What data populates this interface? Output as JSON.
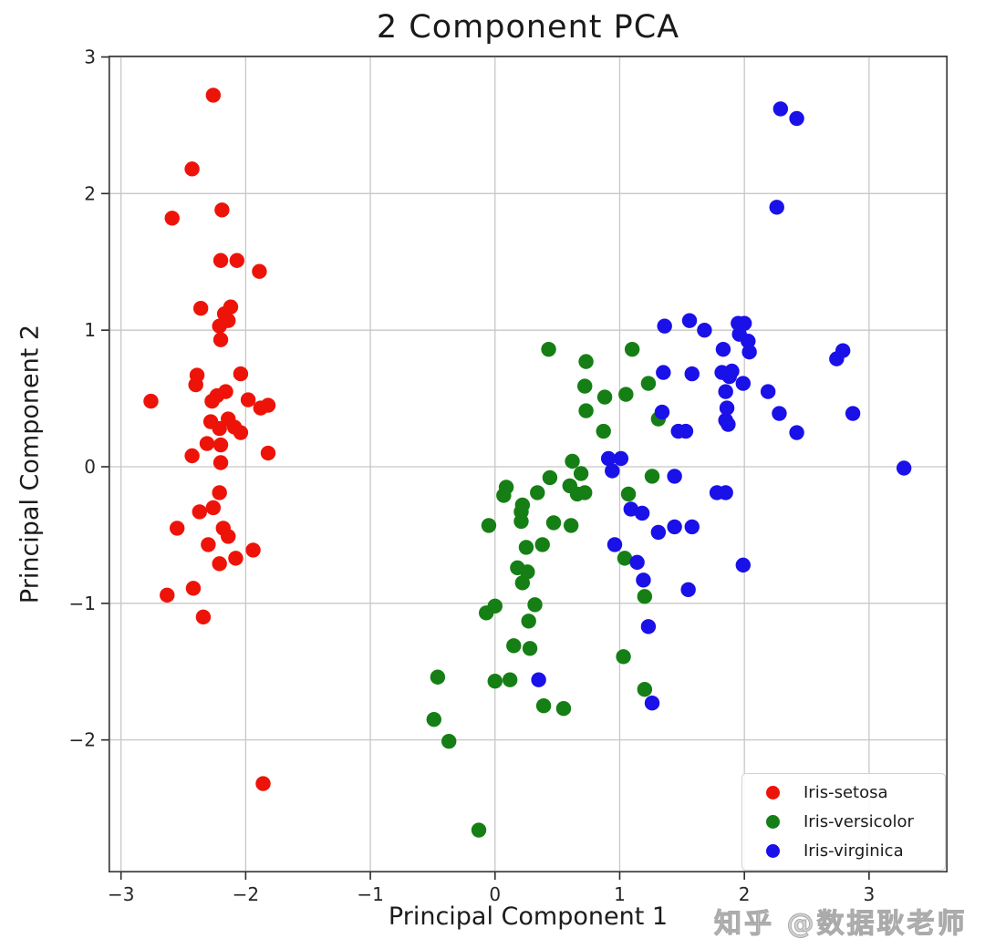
{
  "watermark": "知乎 @数据耿老师",
  "chart_data": {
    "type": "scatter",
    "title": "2 Component PCA",
    "xlabel": "Principal Component 1",
    "ylabel": "Principal Component 2",
    "xlim": [
      -3.1,
      3.63
    ],
    "ylim": [
      -2.97,
      3.01
    ],
    "xticks": [
      -3,
      -2,
      -1,
      0,
      1,
      2,
      3
    ],
    "yticks": [
      -2,
      -1,
      0,
      1,
      2,
      3
    ],
    "grid": true,
    "grid_color": "#c7c7c7",
    "spine_color": "#3b3b3b",
    "marker_radius": 8.2,
    "legend_position": "lower right",
    "series": [
      {
        "name": "Iris-setosa",
        "color": "#ee1309",
        "points": [
          [
            -2.26,
            2.72
          ],
          [
            -2.43,
            2.18
          ],
          [
            -2.19,
            1.88
          ],
          [
            -2.59,
            1.82
          ],
          [
            -2.2,
            1.51
          ],
          [
            -2.07,
            1.51
          ],
          [
            -1.89,
            1.43
          ],
          [
            -2.36,
            1.16
          ],
          [
            -2.12,
            1.17
          ],
          [
            -2.17,
            1.12
          ],
          [
            -2.14,
            1.07
          ],
          [
            -2.21,
            1.03
          ],
          [
            -2.2,
            0.93
          ],
          [
            -2.39,
            0.67
          ],
          [
            -2.04,
            0.68
          ],
          [
            -2.4,
            0.6
          ],
          [
            -2.16,
            0.55
          ],
          [
            -2.27,
            0.48
          ],
          [
            -2.76,
            0.48
          ],
          [
            -1.98,
            0.49
          ],
          [
            -1.88,
            0.43
          ],
          [
            -1.82,
            0.45
          ],
          [
            -2.23,
            0.52
          ],
          [
            -2.14,
            0.35
          ],
          [
            -2.21,
            0.28
          ],
          [
            -2.09,
            0.29
          ],
          [
            -2.04,
            0.25
          ],
          [
            -2.31,
            0.17
          ],
          [
            -2.2,
            0.16
          ],
          [
            -2.28,
            0.33
          ],
          [
            -2.43,
            0.08
          ],
          [
            -1.82,
            0.1
          ],
          [
            -2.2,
            0.03
          ],
          [
            -2.21,
            -0.19
          ],
          [
            -2.37,
            -0.33
          ],
          [
            -2.26,
            -0.3
          ],
          [
            -2.55,
            -0.45
          ],
          [
            -2.18,
            -0.45
          ],
          [
            -2.14,
            -0.51
          ],
          [
            -2.3,
            -0.57
          ],
          [
            -1.94,
            -0.61
          ],
          [
            -2.21,
            -0.71
          ],
          [
            -2.08,
            -0.67
          ],
          [
            -2.42,
            -0.89
          ],
          [
            -2.63,
            -0.94
          ],
          [
            -2.34,
            -1.1
          ],
          [
            -1.86,
            -2.32
          ]
        ]
      },
      {
        "name": "Iris-versicolor",
        "color": "#157f15",
        "points": [
          [
            0.43,
            0.86
          ],
          [
            0.73,
            0.77
          ],
          [
            1.1,
            0.86
          ],
          [
            0.72,
            0.59
          ],
          [
            0.88,
            0.51
          ],
          [
            1.05,
            0.53
          ],
          [
            1.23,
            0.61
          ],
          [
            0.73,
            0.41
          ],
          [
            0.87,
            0.26
          ],
          [
            1.31,
            0.35
          ],
          [
            0.62,
            0.04
          ],
          [
            0.69,
            -0.05
          ],
          [
            0.44,
            -0.08
          ],
          [
            0.6,
            -0.14
          ],
          [
            0.66,
            -0.2
          ],
          [
            0.72,
            -0.19
          ],
          [
            0.09,
            -0.15
          ],
          [
            0.07,
            -0.21
          ],
          [
            0.34,
            -0.19
          ],
          [
            0.22,
            -0.28
          ],
          [
            0.21,
            -0.33
          ],
          [
            0.21,
            -0.4
          ],
          [
            -0.05,
            -0.43
          ],
          [
            0.47,
            -0.41
          ],
          [
            0.61,
            -0.43
          ],
          [
            1.26,
            -0.07
          ],
          [
            1.07,
            -0.2
          ],
          [
            0.25,
            -0.59
          ],
          [
            0.38,
            -0.57
          ],
          [
            0.18,
            -0.74
          ],
          [
            0.26,
            -0.77
          ],
          [
            0.22,
            -0.85
          ],
          [
            1.04,
            -0.67
          ],
          [
            1.2,
            -0.95
          ],
          [
            -0.07,
            -1.07
          ],
          [
            0.0,
            -1.02
          ],
          [
            0.32,
            -1.01
          ],
          [
            0.27,
            -1.13
          ],
          [
            0.15,
            -1.31
          ],
          [
            0.28,
            -1.33
          ],
          [
            1.03,
            -1.39
          ],
          [
            -0.46,
            -1.54
          ],
          [
            0.0,
            -1.57
          ],
          [
            0.12,
            -1.56
          ],
          [
            1.2,
            -1.63
          ],
          [
            0.39,
            -1.75
          ],
          [
            0.55,
            -1.77
          ],
          [
            -0.49,
            -1.85
          ],
          [
            -0.37,
            -2.01
          ],
          [
            -0.13,
            -2.66
          ]
        ]
      },
      {
        "name": "Iris-virginica",
        "color": "#1a10e8",
        "points": [
          [
            2.29,
            2.62
          ],
          [
            2.42,
            2.55
          ],
          [
            2.26,
            1.9
          ],
          [
            1.36,
            1.03
          ],
          [
            1.56,
            1.07
          ],
          [
            1.68,
            1.0
          ],
          [
            1.95,
            1.05
          ],
          [
            2.0,
            1.05
          ],
          [
            1.96,
            0.97
          ],
          [
            2.03,
            0.92
          ],
          [
            2.04,
            0.84
          ],
          [
            1.83,
            0.86
          ],
          [
            2.74,
            0.79
          ],
          [
            2.79,
            0.85
          ],
          [
            1.35,
            0.69
          ],
          [
            1.58,
            0.68
          ],
          [
            1.82,
            0.69
          ],
          [
            1.9,
            0.7
          ],
          [
            1.88,
            0.66
          ],
          [
            1.99,
            0.61
          ],
          [
            1.85,
            0.55
          ],
          [
            2.19,
            0.55
          ],
          [
            1.86,
            0.43
          ],
          [
            2.28,
            0.39
          ],
          [
            2.87,
            0.39
          ],
          [
            1.85,
            0.34
          ],
          [
            1.87,
            0.31
          ],
          [
            2.42,
            0.25
          ],
          [
            1.47,
            0.26
          ],
          [
            1.53,
            0.26
          ],
          [
            1.34,
            0.4
          ],
          [
            0.91,
            0.06
          ],
          [
            1.01,
            0.06
          ],
          [
            0.94,
            -0.03
          ],
          [
            3.28,
            -0.01
          ],
          [
            1.44,
            -0.07
          ],
          [
            1.78,
            -0.19
          ],
          [
            1.85,
            -0.19
          ],
          [
            1.09,
            -0.31
          ],
          [
            1.18,
            -0.34
          ],
          [
            1.31,
            -0.48
          ],
          [
            1.44,
            -0.44
          ],
          [
            1.58,
            -0.44
          ],
          [
            0.96,
            -0.57
          ],
          [
            1.14,
            -0.7
          ],
          [
            1.99,
            -0.72
          ],
          [
            1.19,
            -0.83
          ],
          [
            1.55,
            -0.9
          ],
          [
            1.23,
            -1.17
          ],
          [
            0.35,
            -1.56
          ],
          [
            1.26,
            -1.73
          ]
        ]
      }
    ]
  }
}
